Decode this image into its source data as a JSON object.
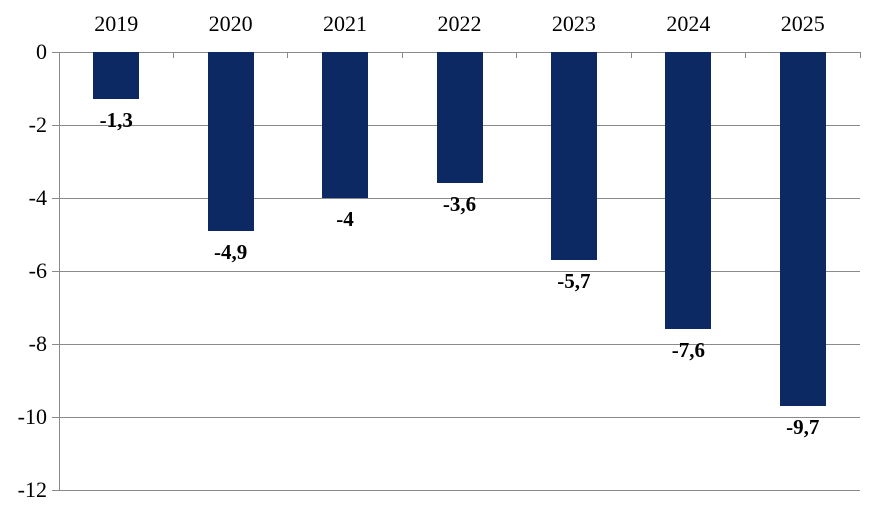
{
  "chart_data": {
    "type": "bar",
    "title": "",
    "xlabel": "",
    "ylabel": "",
    "categories": [
      "2019",
      "2020",
      "2021",
      "2022",
      "2023",
      "2024",
      "2025"
    ],
    "values": [
      -1.3,
      -4.9,
      -4,
      -3.6,
      -5.7,
      -7.6,
      -9.7
    ],
    "data_labels": [
      "-1,3",
      "-4,9",
      "-4",
      "-3,6",
      "-5,7",
      "-7,6",
      "-9,7"
    ],
    "y_ticks": [
      0,
      -2,
      -4,
      -6,
      -8,
      -10,
      -12
    ],
    "y_tick_labels": [
      "0",
      "-2",
      "-4",
      "-6",
      "-8",
      "-10",
      "-12"
    ],
    "ylim": [
      0,
      -12
    ],
    "grid": true,
    "legend_position": "none",
    "colors": {
      "bar": "#0d2963",
      "gridline": "#8a8a8a",
      "axis": "#8a8a8a",
      "text": "#000000",
      "background": "#ffffff"
    }
  }
}
